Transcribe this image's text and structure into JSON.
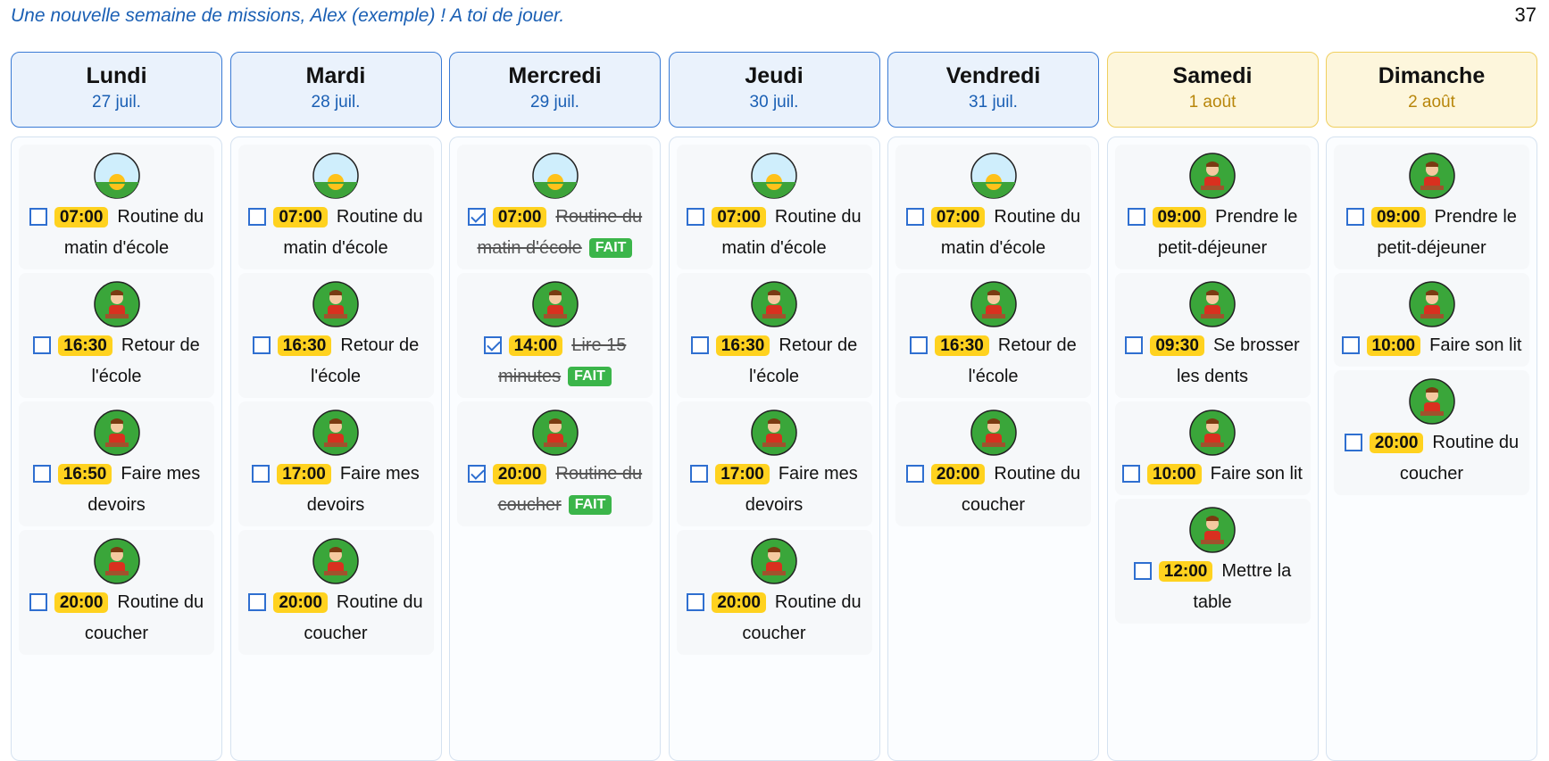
{
  "header": {
    "text": "Une nouvelle semaine de missions, Alex (exemple) ! A toi de jouer.",
    "page_number": "37"
  },
  "days": [
    {
      "name": "Lundi",
      "date": "27 juil.",
      "weekend": false,
      "tasks": [
        {
          "time": "07:00",
          "label": "Routine du matin d'école",
          "done": false
        },
        {
          "time": "16:30",
          "label": "Retour de l'école",
          "done": false
        },
        {
          "time": "16:50",
          "label": "Faire mes devoirs",
          "done": false
        },
        {
          "time": "20:00",
          "label": "Routine du coucher",
          "done": false
        }
      ]
    },
    {
      "name": "Mardi",
      "date": "28 juil.",
      "weekend": false,
      "tasks": [
        {
          "time": "07:00",
          "label": "Routine du matin d'école",
          "done": false
        },
        {
          "time": "16:30",
          "label": "Retour de l'école",
          "done": false
        },
        {
          "time": "17:00",
          "label": "Faire mes devoirs",
          "done": false
        },
        {
          "time": "20:00",
          "label": "Routine du coucher",
          "done": false
        }
      ]
    },
    {
      "name": "Mercredi",
      "date": "29 juil.",
      "weekend": false,
      "tasks": [
        {
          "time": "07:00",
          "label": "Routine du matin d'école",
          "done": true,
          "badge": "FAIT"
        },
        {
          "time": "14:00",
          "label": "Lire 15 minutes",
          "done": true,
          "badge": "FAIT"
        },
        {
          "time": "20:00",
          "label": "Routine du coucher",
          "done": true,
          "badge": "FAIT"
        }
      ]
    },
    {
      "name": "Jeudi",
      "date": "30 juil.",
      "weekend": false,
      "tasks": [
        {
          "time": "07:00",
          "label": "Routine du matin d'école",
          "done": false
        },
        {
          "time": "16:30",
          "label": "Retour de l'école",
          "done": false
        },
        {
          "time": "17:00",
          "label": "Faire mes devoirs",
          "done": false
        },
        {
          "time": "20:00",
          "label": "Routine du coucher",
          "done": false
        }
      ]
    },
    {
      "name": "Vendredi",
      "date": "31 juil.",
      "weekend": false,
      "tasks": [
        {
          "time": "07:00",
          "label": "Routine du matin d'école",
          "done": false
        },
        {
          "time": "16:30",
          "label": "Retour de l'école",
          "done": false
        },
        {
          "time": "20:00",
          "label": "Routine du coucher",
          "done": false
        }
      ]
    },
    {
      "name": "Samedi",
      "date": "1 août",
      "weekend": true,
      "tasks": [
        {
          "time": "09:00",
          "label": "Prendre le petit-déjeuner",
          "done": false
        },
        {
          "time": "09:30",
          "label": "Se brosser les dents",
          "done": false
        },
        {
          "time": "10:00",
          "label": "Faire son lit",
          "done": false
        },
        {
          "time": "12:00",
          "label": "Mettre la table",
          "done": false
        }
      ]
    },
    {
      "name": "Dimanche",
      "date": "2 août",
      "weekend": true,
      "tasks": [
        {
          "time": "09:00",
          "label": "Prendre le petit-déjeuner",
          "done": false
        },
        {
          "time": "10:00",
          "label": "Faire son lit",
          "done": false
        },
        {
          "time": "20:00",
          "label": "Routine du coucher",
          "done": false
        }
      ]
    }
  ]
}
